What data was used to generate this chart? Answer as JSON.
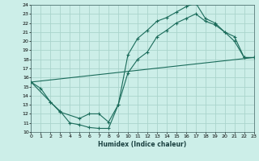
{
  "xlabel": "Humidex (Indice chaleur)",
  "xlim": [
    0,
    23
  ],
  "ylim": [
    10,
    24
  ],
  "xticks": [
    0,
    1,
    2,
    3,
    4,
    5,
    6,
    7,
    8,
    9,
    10,
    11,
    12,
    13,
    14,
    15,
    16,
    17,
    18,
    19,
    20,
    21,
    22,
    23
  ],
  "yticks": [
    10,
    11,
    12,
    13,
    14,
    15,
    16,
    17,
    18,
    19,
    20,
    21,
    22,
    23,
    24
  ],
  "background_color": "#cceee8",
  "grid_color": "#aad4cc",
  "line_color": "#1a6b5a",
  "line1_x": [
    0,
    1,
    2,
    3,
    4,
    5,
    6,
    7,
    8,
    9,
    10,
    11,
    12,
    13,
    14,
    15,
    16,
    17,
    18,
    19,
    20,
    21,
    22,
    23
  ],
  "line1_y": [
    15.5,
    14.8,
    13.3,
    12.3,
    11.0,
    10.8,
    10.5,
    10.4,
    10.4,
    13.0,
    18.5,
    20.3,
    21.2,
    22.2,
    22.6,
    23.2,
    23.8,
    24.2,
    22.5,
    22.0,
    21.0,
    20.5,
    18.2,
    18.2
  ],
  "line2_x": [
    0,
    2,
    3,
    5,
    6,
    7,
    8,
    9,
    10,
    11,
    12,
    13,
    14,
    15,
    16,
    17,
    18,
    19,
    20,
    21,
    22,
    23
  ],
  "line2_y": [
    15.5,
    13.3,
    12.2,
    11.5,
    12.0,
    12.0,
    11.1,
    13.0,
    16.5,
    18.0,
    18.8,
    20.5,
    21.2,
    22.0,
    22.5,
    23.0,
    22.2,
    21.8,
    21.0,
    20.0,
    18.2,
    18.2
  ],
  "line3_x": [
    0,
    23
  ],
  "line3_y": [
    15.5,
    18.2
  ]
}
